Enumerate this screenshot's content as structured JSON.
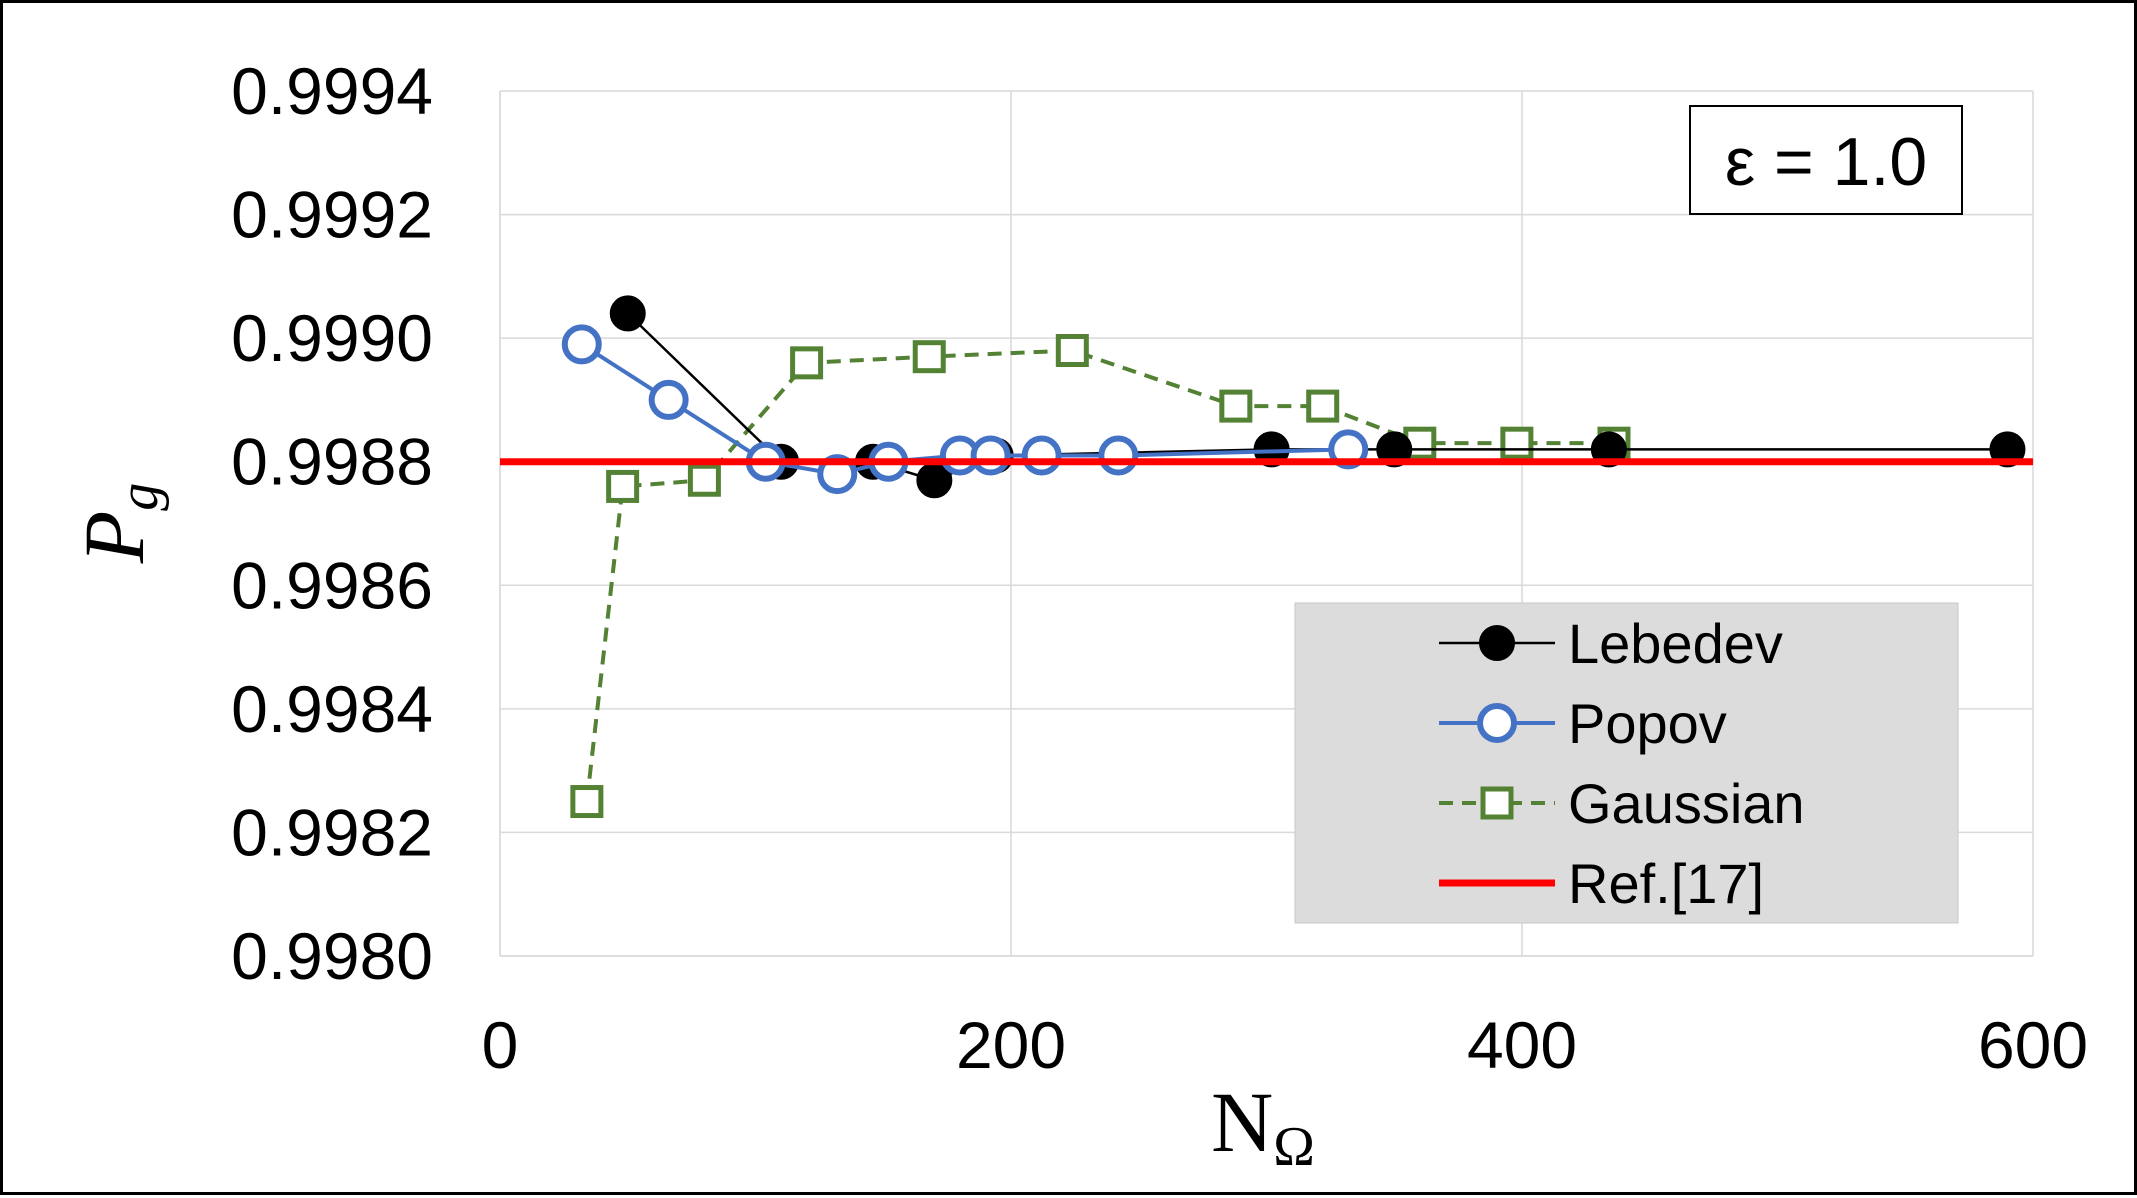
{
  "chart_data": {
    "type": "line",
    "annotation": "ε = 1.0",
    "xlabel": "N",
    "xlabel_subscript": "Ω",
    "ylabel": "P",
    "ylabel_subscript": "g",
    "xlim": [
      0,
      600
    ],
    "ylim": [
      0.998,
      0.9994
    ],
    "x_ticks": [
      0,
      200,
      400,
      600
    ],
    "x_tick_labels": [
      "0",
      "200",
      "400",
      "600"
    ],
    "y_ticks": [
      0.998,
      0.9982,
      0.9984,
      0.9986,
      0.9988,
      0.999,
      0.9992,
      0.9994
    ],
    "y_tick_labels": [
      "0.9980",
      "0.9982",
      "0.9984",
      "0.9986",
      "0.9988",
      "0.9990",
      "0.9992",
      "0.9994"
    ],
    "grid": true,
    "legend_position": "bottom-right",
    "series": [
      {
        "name": "Lebedev",
        "color": "#000000",
        "marker": "filled-circle",
        "line_style": "solid",
        "points": [
          [
            50,
            0.99904
          ],
          [
            110,
            0.9988
          ],
          [
            146,
            0.9988
          ],
          [
            170,
            0.99877
          ],
          [
            194,
            0.99881
          ],
          [
            302,
            0.99882
          ],
          [
            350,
            0.99882
          ],
          [
            434,
            0.99882
          ],
          [
            590,
            0.99882
          ]
        ]
      },
      {
        "name": "Popov",
        "color": "#4472c4",
        "marker": "open-circle",
        "line_style": "solid",
        "points": [
          [
            32,
            0.99899
          ],
          [
            66,
            0.9989
          ],
          [
            104,
            0.9988
          ],
          [
            132,
            0.99878
          ],
          [
            152,
            0.9988
          ],
          [
            180,
            0.99881
          ],
          [
            192,
            0.99881
          ],
          [
            212,
            0.99881
          ],
          [
            242,
            0.99881
          ],
          [
            332,
            0.99882
          ]
        ]
      },
      {
        "name": "Gaussian",
        "color": "#548235",
        "marker": "open-square",
        "line_style": "dashed",
        "points": [
          [
            34,
            0.99825
          ],
          [
            48,
            0.99876
          ],
          [
            80,
            0.99877
          ],
          [
            120,
            0.99896
          ],
          [
            168,
            0.99897
          ],
          [
            224,
            0.99898
          ],
          [
            288,
            0.99889
          ],
          [
            322,
            0.99889
          ],
          [
            360,
            0.99883
          ],
          [
            398,
            0.99883
          ],
          [
            436,
            0.99883
          ]
        ]
      },
      {
        "name": "Ref.[17]",
        "color": "#ff0000",
        "marker": "none",
        "line_style": "solid",
        "points": [
          [
            0,
            0.9988
          ],
          [
            600,
            0.9988
          ]
        ]
      }
    ]
  }
}
